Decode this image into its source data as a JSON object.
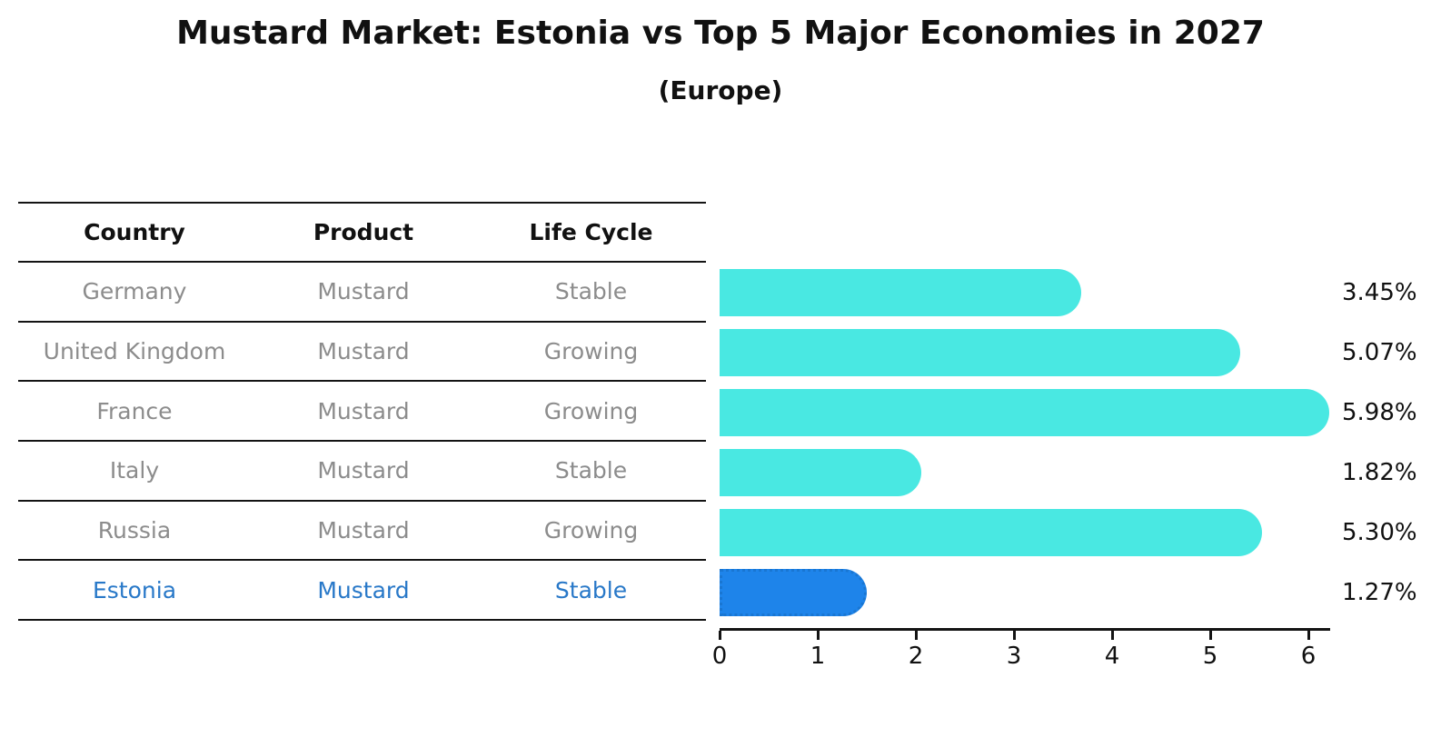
{
  "title": "Mustard Market: Estonia vs Top 5 Major Economies in 2027",
  "subtitle": "(Europe)",
  "table": {
    "headers": [
      "Country",
      "Product",
      "Life Cycle"
    ],
    "rows": [
      {
        "country": "Germany",
        "product": "Mustard",
        "life_cycle": "Stable",
        "highlight": false
      },
      {
        "country": "United Kingdom",
        "product": "Mustard",
        "life_cycle": "Growing",
        "highlight": false
      },
      {
        "country": "France",
        "product": "Mustard",
        "life_cycle": "Growing",
        "highlight": false
      },
      {
        "country": "Italy",
        "product": "Mustard",
        "life_cycle": "Stable",
        "highlight": false
      },
      {
        "country": "Russia",
        "product": "Mustard",
        "life_cycle": "Growing",
        "highlight": false
      },
      {
        "country": "Estonia",
        "product": "Mustard",
        "life_cycle": "Stable",
        "highlight": true
      }
    ]
  },
  "chart_data": {
    "type": "bar",
    "orientation": "horizontal",
    "title": "Mustard Market: Estonia vs Top 5 Major Economies in 2027",
    "subtitle": "(Europe)",
    "categories": [
      "Germany",
      "United Kingdom",
      "France",
      "Italy",
      "Russia",
      "Estonia"
    ],
    "values": [
      3.45,
      5.07,
      5.98,
      1.82,
      5.3,
      1.27
    ],
    "value_labels": [
      "3.45%",
      "5.07%",
      "5.98%",
      "1.82%",
      "5.30%",
      "1.27%"
    ],
    "unit": "percent",
    "highlight_index": 5,
    "xlim": [
      0,
      6.2
    ],
    "xticks": [
      "0",
      "1",
      "2",
      "3",
      "4",
      "5",
      "6"
    ],
    "grid": false,
    "legend": false
  },
  "colors": {
    "bar_fill": "#49E8E2",
    "highlight_bar_fill": "#1E84EA",
    "highlight_bar_border": "#1976D2",
    "highlight_text": "#2878C8",
    "table_text_gray": "#8C8C8C",
    "axis_black": "#141414"
  }
}
